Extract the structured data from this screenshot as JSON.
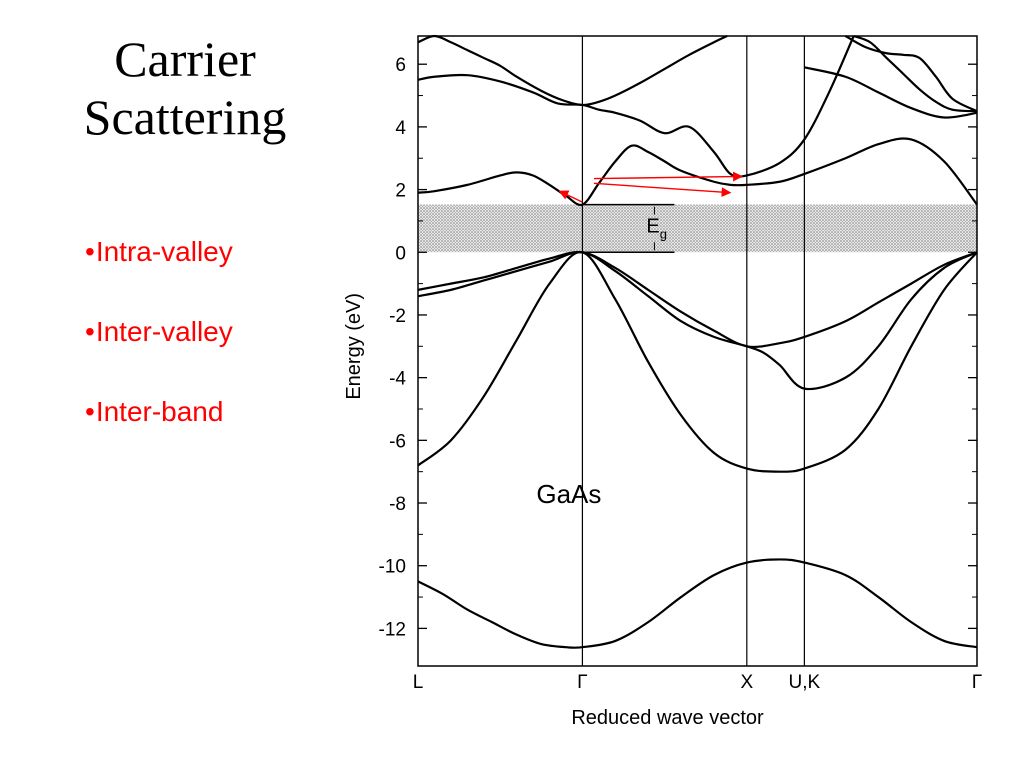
{
  "slide": {
    "title_line1": "Carrier",
    "title_line2": "Scattering",
    "bullet_marker": "•",
    "bullets": [
      "Intra-valley",
      "Inter-valley",
      "Inter-band"
    ],
    "bullet_color": "#ff0000"
  },
  "chart_data": {
    "type": "line",
    "title": "",
    "xlabel": "Reduced wave vector",
    "ylabel": "Energy (eV)",
    "ylim": [
      -13.2,
      6.9
    ],
    "yticks": [
      -12,
      -10,
      -8,
      -6,
      -4,
      -2,
      0,
      2,
      4,
      6
    ],
    "ytick_labels": [
      "-12",
      "-10",
      "-8",
      "-6",
      "-4",
      "-2",
      "0",
      "2",
      "4",
      "6"
    ],
    "k_points": [
      {
        "label": "L",
        "x": 0
      },
      {
        "label": "Γ",
        "x": 1
      },
      {
        "label": "X",
        "x": 2
      },
      {
        "label": "U,K",
        "x": 2.35
      },
      {
        "label": "Γ",
        "x": 3.4
      }
    ],
    "material_label": "GaAs",
    "gap_label": "E",
    "gap_subscript": "g",
    "band_gap": {
      "valence_top": 0,
      "conduction_min": 1.52
    },
    "line_color": "#000000",
    "arrow_color": "#ff0000",
    "bands": [
      {
        "x": [
          0,
          0.15,
          0.3,
          0.45,
          0.6,
          0.75,
          0.9,
          1.0,
          1.2,
          1.4,
          1.6,
          1.8,
          2.0,
          2.2,
          2.35,
          2.6,
          2.8,
          3.0,
          3.2,
          3.4
        ],
        "y": [
          -10.5,
          -10.9,
          -11.4,
          -11.8,
          -12.2,
          -12.5,
          -12.6,
          -12.6,
          -12.4,
          -11.8,
          -11.0,
          -10.3,
          -9.9,
          -9.8,
          -9.9,
          -10.3,
          -11.0,
          -11.8,
          -12.4,
          -12.6
        ]
      },
      {
        "x": [
          0,
          0.2,
          0.4,
          0.6,
          0.8,
          1.0,
          1.2,
          1.4,
          1.6,
          1.8,
          2.0,
          2.2,
          2.35,
          2.6,
          2.8,
          3.0,
          3.2,
          3.4
        ],
        "y": [
          -6.8,
          -6.0,
          -4.6,
          -2.8,
          -1.0,
          0.0,
          -1.5,
          -3.5,
          -5.2,
          -6.4,
          -6.9,
          -7.0,
          -6.9,
          -6.3,
          -5.0,
          -3.0,
          -1.2,
          0.0
        ]
      },
      {
        "x": [
          0,
          0.2,
          0.4,
          0.6,
          0.8,
          1.0,
          1.2,
          1.4,
          1.6,
          1.8,
          2.0,
          2.1,
          2.2,
          2.35,
          2.6,
          2.8,
          3.0,
          3.2,
          3.4
        ],
        "y": [
          -1.4,
          -1.2,
          -0.9,
          -0.6,
          -0.3,
          0.0,
          -0.6,
          -1.4,
          -2.2,
          -2.7,
          -3.0,
          -3.2,
          -3.6,
          -4.35,
          -4.0,
          -3.0,
          -1.5,
          -0.5,
          0.0
        ]
      },
      {
        "x": [
          0,
          0.2,
          0.4,
          0.6,
          0.8,
          1.0,
          1.2,
          1.4,
          1.6,
          1.8,
          2.0,
          2.2,
          2.35,
          2.6,
          2.8,
          3.0,
          3.2,
          3.4
        ],
        "y": [
          -1.2,
          -1.0,
          -0.8,
          -0.5,
          -0.2,
          0.0,
          -0.5,
          -1.2,
          -1.9,
          -2.5,
          -3.0,
          -2.9,
          -2.7,
          -2.2,
          -1.6,
          -1.0,
          -0.4,
          0.0
        ]
      },
      {
        "x": [
          0,
          0.1,
          0.3,
          0.5,
          0.6,
          0.7,
          0.8,
          0.9,
          1.0,
          1.1,
          1.2,
          1.3,
          1.4,
          1.5,
          1.6,
          1.8,
          1.9,
          2.0,
          2.2,
          2.35,
          2.6,
          2.8,
          3.0,
          3.2,
          3.4
        ],
        "y": [
          1.9,
          1.95,
          2.15,
          2.45,
          2.55,
          2.45,
          2.15,
          1.8,
          1.52,
          2.2,
          2.9,
          3.4,
          3.2,
          2.9,
          2.6,
          2.25,
          2.15,
          2.15,
          2.25,
          2.5,
          3.0,
          3.45,
          3.6,
          2.9,
          1.52
        ]
      },
      {
        "x": [
          0,
          0.1,
          0.3,
          0.5,
          0.7,
          0.85,
          1.0,
          1.1,
          1.2,
          1.35,
          1.5,
          1.65,
          1.8,
          1.9,
          2.0,
          2.2,
          2.35,
          2.5,
          2.65
        ],
        "y": [
          5.5,
          5.6,
          5.65,
          5.45,
          5.1,
          4.75,
          4.7,
          4.55,
          4.45,
          4.2,
          3.8,
          4.0,
          3.2,
          2.5,
          2.45,
          2.85,
          3.6,
          5.1,
          6.9
        ]
      },
      {
        "x": [
          0.0,
          0.1,
          0.2,
          0.3,
          0.4,
          0.5,
          0.6,
          0.75,
          0.88,
          1.0,
          1.1,
          1.2,
          1.35,
          1.5,
          1.65,
          1.8,
          1.88
        ],
        "y": [
          6.7,
          6.9,
          6.7,
          6.45,
          6.2,
          5.95,
          5.6,
          5.15,
          4.85,
          4.7,
          4.8,
          5.0,
          5.4,
          5.85,
          6.3,
          6.7,
          6.9
        ]
      },
      {
        "x": [
          2.65,
          2.75,
          2.85,
          2.95,
          3.05,
          3.15,
          3.25,
          3.4
        ],
        "y": [
          6.9,
          6.7,
          6.2,
          5.7,
          5.2,
          4.8,
          4.55,
          4.5
        ]
      },
      {
        "x": [
          2.6,
          2.72,
          2.85,
          2.95,
          3.05,
          3.15,
          3.25,
          3.4
        ],
        "y": [
          6.9,
          6.55,
          6.35,
          6.3,
          6.2,
          5.6,
          4.9,
          4.5
        ]
      },
      {
        "x": [
          2.35,
          2.6,
          2.8,
          3.0,
          3.2,
          3.4
        ],
        "y": [
          5.9,
          5.6,
          5.1,
          4.6,
          4.3,
          4.45
        ]
      }
    ],
    "scattering_arrows": [
      {
        "from": [
          1.0,
          1.6
        ],
        "to": [
          0.86,
          1.95
        ]
      },
      {
        "from": [
          1.07,
          2.35
        ],
        "to": [
          1.97,
          2.42
        ]
      },
      {
        "from": [
          1.07,
          2.2
        ],
        "to": [
          1.9,
          1.9
        ]
      }
    ]
  }
}
